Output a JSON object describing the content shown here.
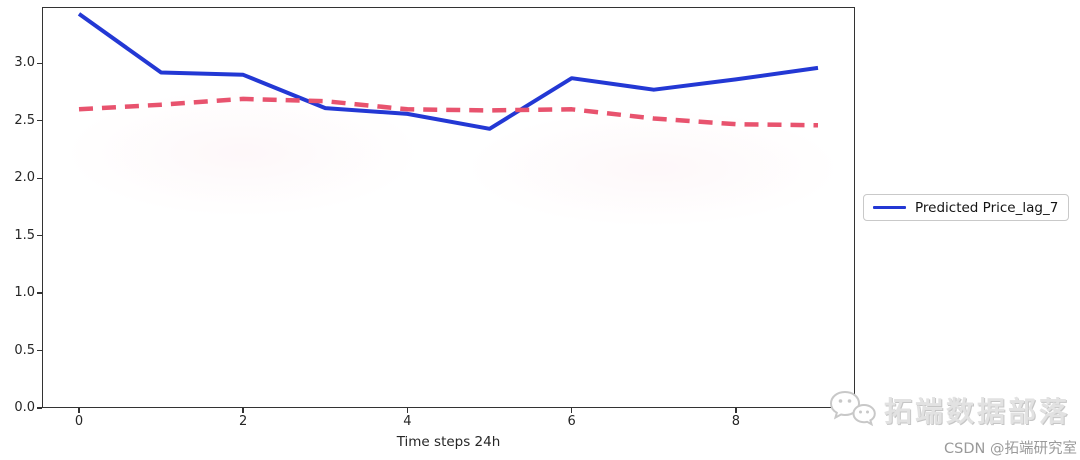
{
  "figure": {
    "background": "#ffffff",
    "spine_color": "#333333",
    "tick_text_color": "#262626"
  },
  "legend": {
    "label": "Predicted Price_lag_7",
    "swatch_color": "#2338d4",
    "position": "outside-right"
  },
  "watermark": {
    "logo": "wechat-icon",
    "brand_text": "拓端数据部落",
    "csdn_text": "CSDN @拓端研究室",
    "brand_color": "#e2e2e2",
    "csdn_color": "#9a9a9a"
  },
  "chart_data": {
    "type": "line",
    "title": "",
    "xlabel": "Time steps 24h",
    "ylabel": "",
    "grid": false,
    "legend_position": "outside-right",
    "x": [
      0,
      1,
      2,
      3,
      4,
      5,
      6,
      7,
      8,
      9
    ],
    "xlim": [
      -0.45,
      9.45
    ],
    "ylim": [
      0,
      3.49
    ],
    "xticks": [
      0,
      2,
      4,
      6,
      8
    ],
    "xtick_labels": [
      "0",
      "2",
      "4",
      "6",
      "8"
    ],
    "yticks": [
      0.0,
      0.5,
      1.0,
      1.5,
      2.0,
      2.5,
      3.0
    ],
    "ytick_labels": [
      "0.0",
      "0.5",
      "1.0",
      "1.5",
      "2.0",
      "2.5",
      "3.0"
    ],
    "series": [
      {
        "name": "Predicted Price_lag_7",
        "data_name": "predicted-price-line",
        "style": "solid",
        "color": "#2338d4",
        "width": 4,
        "values": [
          3.43,
          2.92,
          2.9,
          2.61,
          2.56,
          2.43,
          2.87,
          2.77,
          2.86,
          2.96
        ]
      },
      {
        "name": "",
        "data_name": "red-dashed-line",
        "style": "dashed",
        "color": "#e8536e",
        "width": 4.5,
        "dash": "14 9",
        "values": [
          2.6,
          2.64,
          2.69,
          2.67,
          2.6,
          2.59,
          2.6,
          2.52,
          2.47,
          2.46
        ]
      }
    ]
  }
}
